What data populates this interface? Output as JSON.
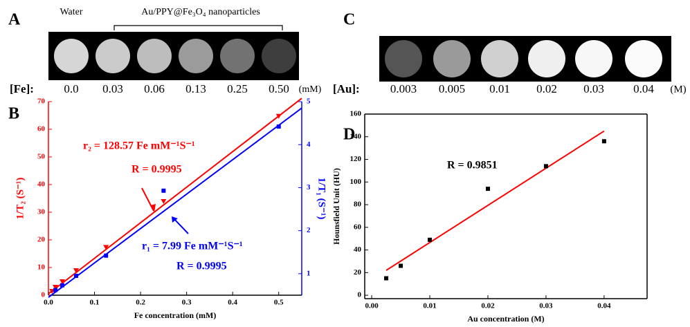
{
  "panel_a": {
    "label": "A",
    "water_label": "Water",
    "sample_label": "Au/PPY@Fe₃O₄ nanoparticles",
    "row_label": "[Fe]:",
    "concentrations": [
      "0.0",
      "0.03",
      "0.06",
      "0.13",
      "0.25",
      "0.50"
    ],
    "unit": "(mM)"
  },
  "panel_c": {
    "label": "C",
    "row_label": "[Au]:",
    "concentrations": [
      "0.003",
      "0.005",
      "0.01",
      "0.02",
      "0.03",
      "0.04"
    ],
    "unit": "(M)"
  },
  "chart_data": [
    {
      "type": "scatter",
      "label": "B",
      "x_label": "Fe concentration (mM)",
      "y_label": "1/T₂ (S⁻¹)",
      "y2_label": "1/T₁ (S⁻¹)",
      "xlim": [
        0,
        0.55
      ],
      "xticks": [
        {
          "value": 0,
          "label": "0.0"
        },
        0.1,
        0.2,
        0.3,
        0.4,
        0.5
      ],
      "ylim": [
        0,
        70
      ],
      "yticks": [
        0,
        10,
        20,
        30,
        40,
        50,
        60,
        70
      ],
      "ycolor": "#ff0000",
      "y2lim": [
        0.5,
        5
      ],
      "y2ticks": [
        1,
        2,
        3,
        4,
        5
      ],
      "y2color": "#0000ff",
      "series": [
        {
          "color": "#ff0000",
          "mode": "line",
          "x": [
            0,
            0.55
          ],
          "values": [
            0.5,
            71.2
          ]
        },
        {
          "color": "#0000ff",
          "mode": "line",
          "axis": "y2",
          "x": [
            0,
            0.55
          ],
          "values": [
            0.45,
            4.85
          ]
        },
        {
          "color": "#ff0000",
          "mode": "markers",
          "marker": "triangle",
          "x": [
            0.0078,
            0.015,
            0.03,
            0.06,
            0.125,
            0.25,
            0.5
          ],
          "values": [
            1.5,
            3,
            5,
            9,
            17.4,
            34,
            64.8
          ]
        },
        {
          "color": "#0000ff",
          "mode": "markers",
          "marker": "square",
          "axis": "y2",
          "x": [
            0.015,
            0.03,
            0.06,
            0.125,
            0.25,
            0.5
          ],
          "values": [
            0.62,
            0.73,
            0.95,
            1.42,
            2.93,
            4.42
          ]
        }
      ],
      "annotations": [
        {
          "text": "r₂ = 128.57 Fe mM⁻¹S⁻¹",
          "color": "#ff0000"
        },
        {
          "text": "R = 0.9995",
          "color": "#ff0000"
        },
        {
          "text": "r₁ = 7.99 Fe mM⁻¹S⁻¹",
          "color": "#0000ff"
        },
        {
          "text": "R = 0.9995",
          "color": "#0000ff"
        }
      ]
    },
    {
      "type": "scatter",
      "label": "D",
      "x_label": "Au concentration (M)",
      "y_label": "Hounsfield Unit (HU)",
      "xlim": [
        -0.0012,
        0.0474
      ],
      "xticks": [
        {
          "value": 0,
          "label": "0.00"
        },
        0.01,
        0.02,
        0.03,
        0.04
      ],
      "ylim": [
        -3,
        160
      ],
      "yticks": [
        0,
        20,
        40,
        60,
        80,
        100,
        120,
        140,
        160
      ],
      "ycolor": "#000000",
      "series": [
        {
          "color": "#ff0000",
          "mode": "line",
          "x": [
            0.0025,
            0.04
          ],
          "values": [
            22,
            145
          ]
        },
        {
          "color": "#000000",
          "mode": "markers",
          "marker": "square",
          "x": [
            0.0025,
            0.005,
            0.01,
            0.02,
            0.03,
            0.04
          ],
          "values": [
            15,
            26,
            49,
            94,
            114,
            136
          ]
        }
      ],
      "annotations": [
        {
          "text": "R = 0.9851",
          "color": "#000000"
        }
      ]
    }
  ]
}
